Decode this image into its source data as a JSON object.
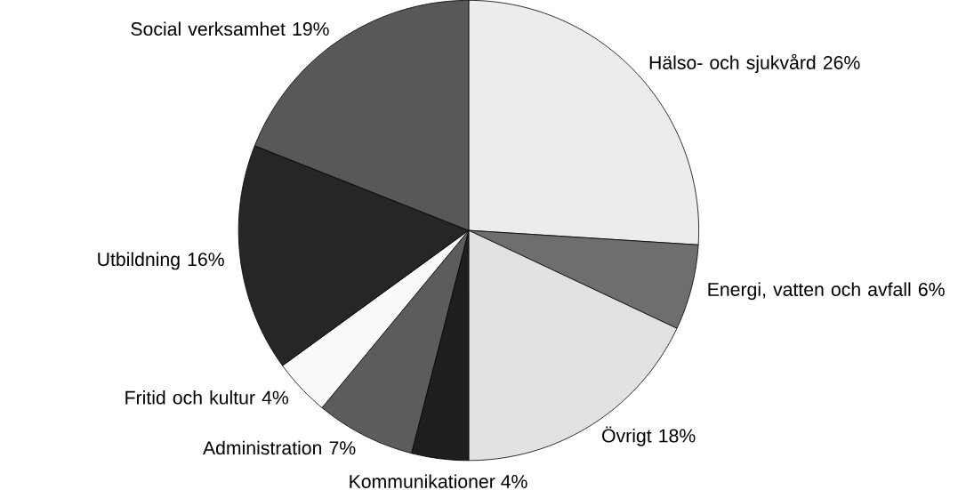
{
  "chart_data": {
    "type": "pie",
    "categories": [
      "Hälso- och sjukvård",
      "Energi, vatten och avfall",
      "Övrigt",
      "Kommunikationer",
      "Administration",
      "Fritid och kultur",
      "Utbildning",
      "Social verksamhet"
    ],
    "values": [
      26,
      6,
      18,
      4,
      7,
      4,
      16,
      19
    ],
    "value_labels": [
      "26%",
      "6%",
      "18%",
      "4%",
      "7%",
      "4%",
      "16%",
      "19%"
    ],
    "colors": [
      "#ececec",
      "#6e6e6e",
      "#e2e2e2",
      "#1e1e1e",
      "#5c5c5c",
      "#fafafa",
      "#262626",
      "#585858"
    ]
  }
}
